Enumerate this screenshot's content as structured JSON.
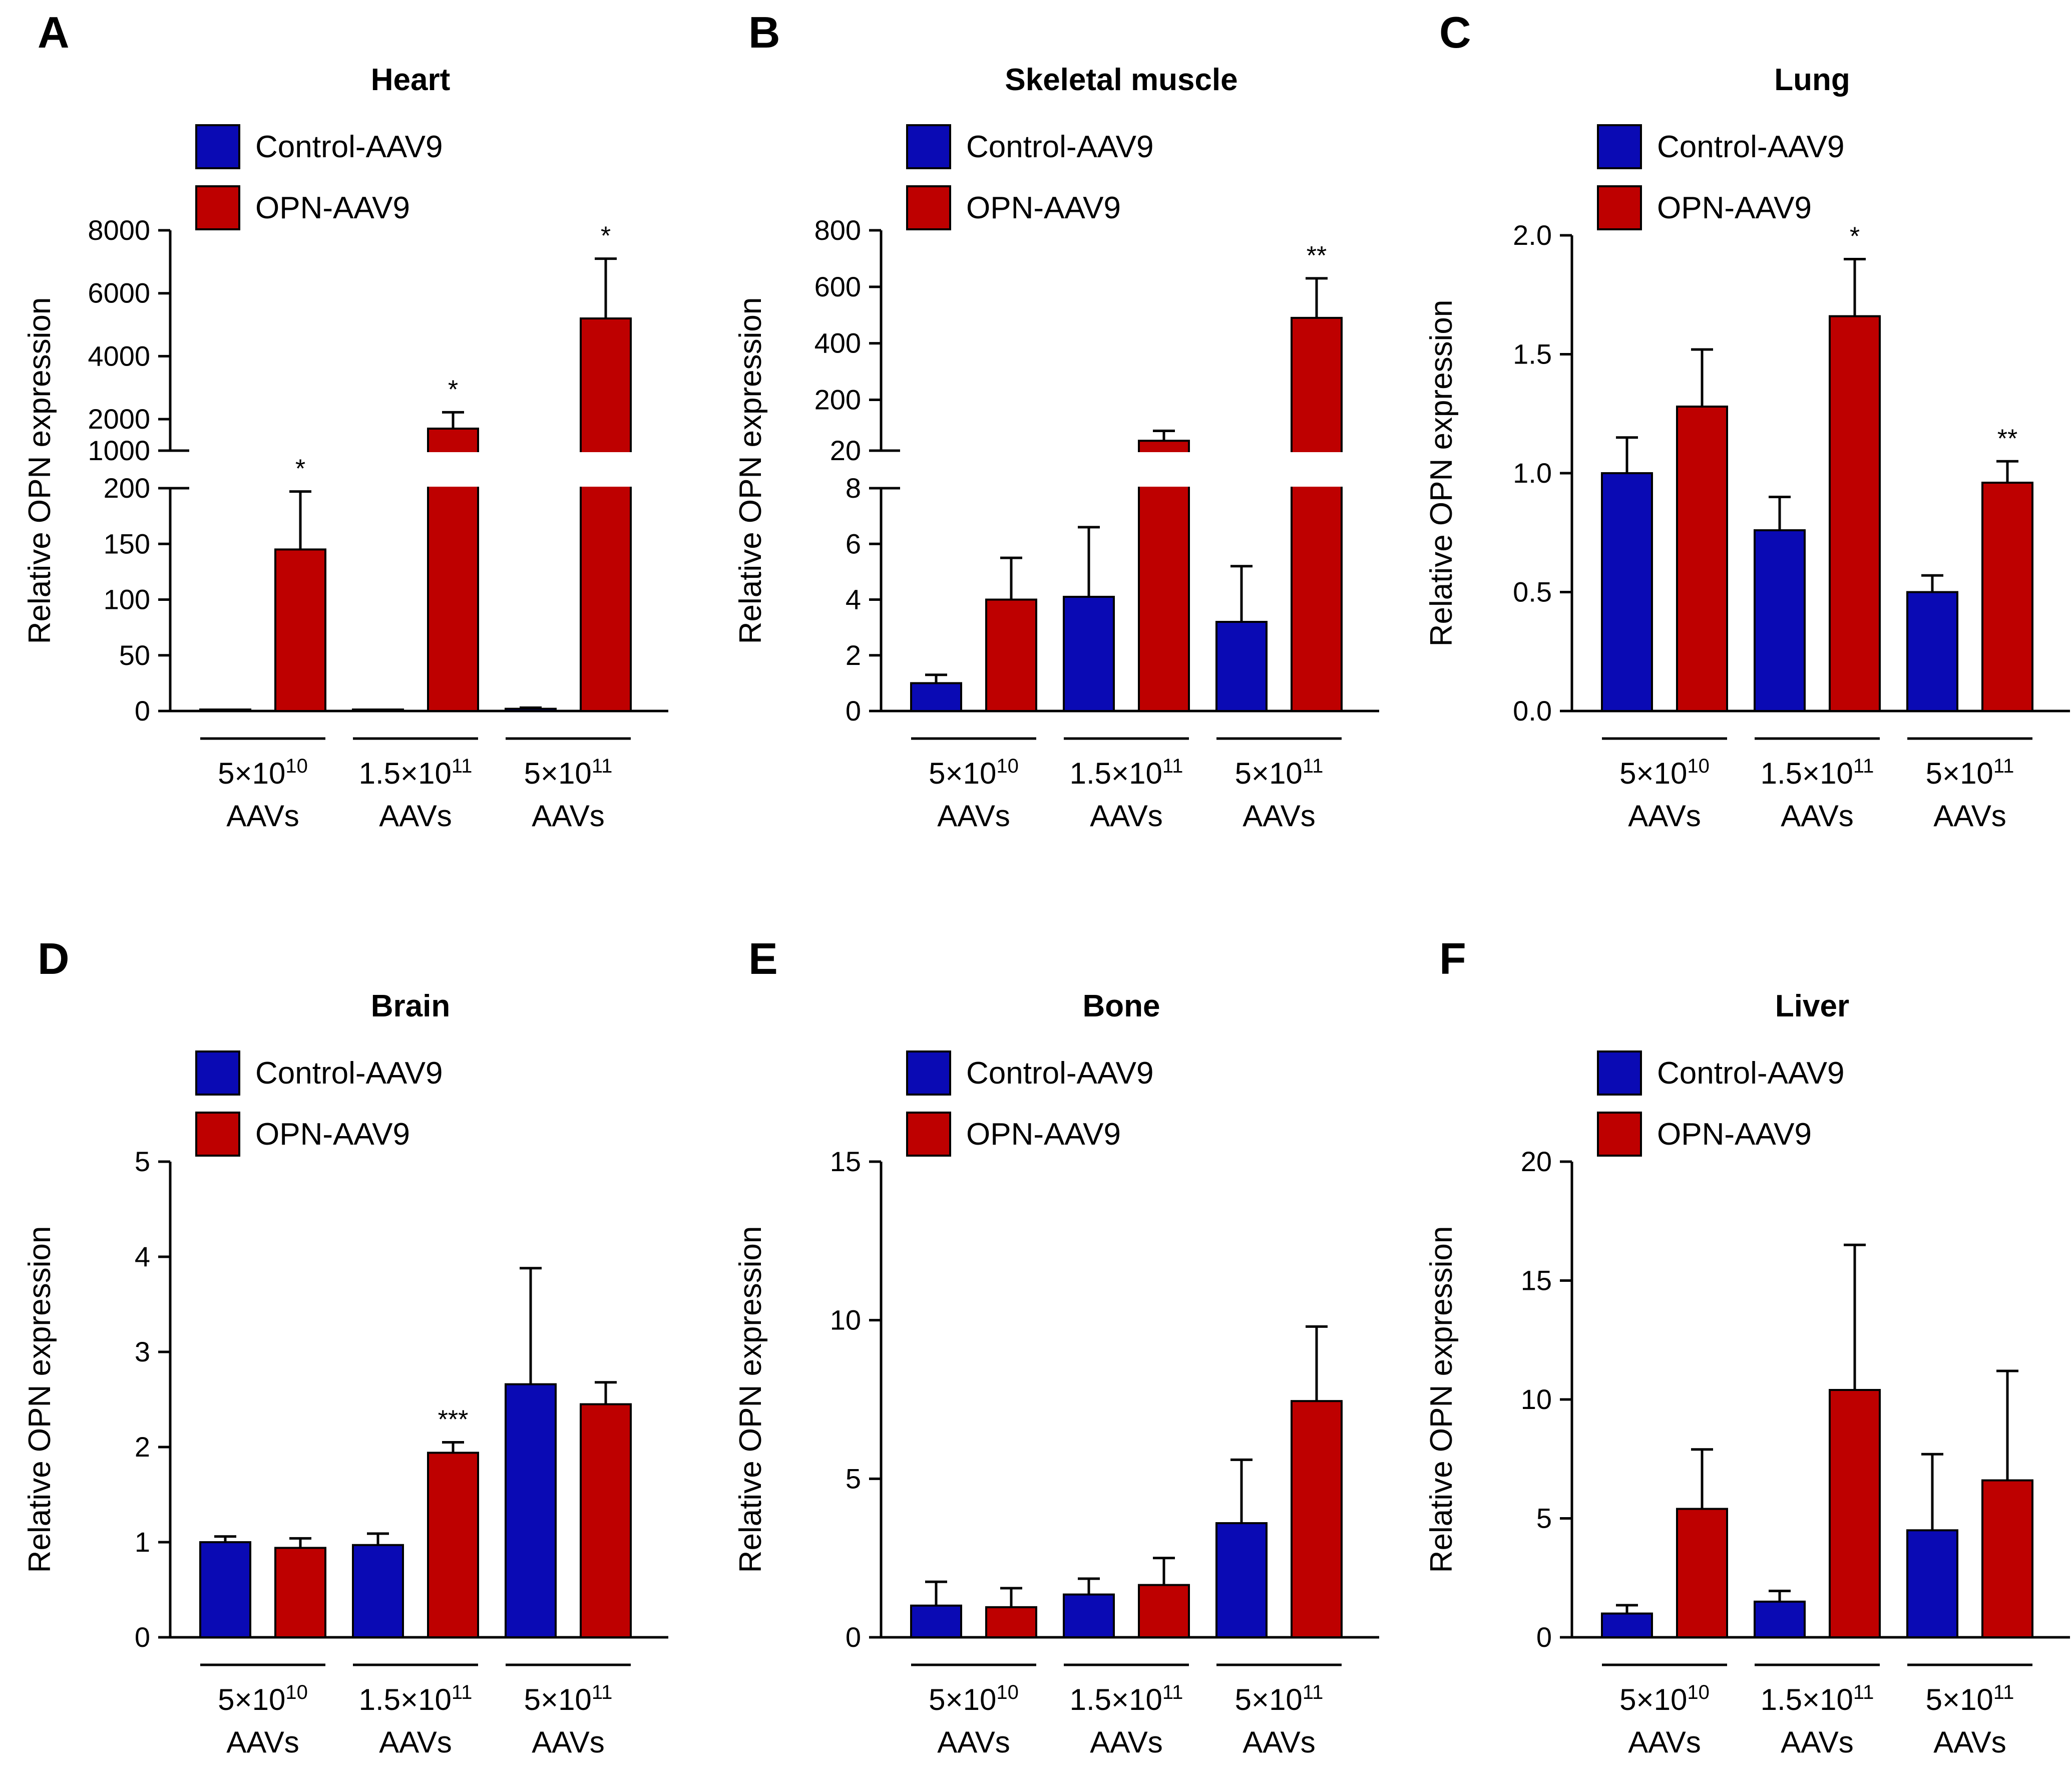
{
  "chart_data": [
    {
      "panel": "A",
      "title": "Heart",
      "type": "bar",
      "ylabel": "Relative OPN expression",
      "legend": [
        "Control-AAV9",
        "OPN-AAV9"
      ],
      "categories": [
        {
          "dose": "5×10",
          "exp": "10",
          "unit": "AAVs"
        },
        {
          "dose": "1.5×10",
          "exp": "11",
          "unit": "AAVs"
        },
        {
          "dose": "5×10",
          "exp": "11",
          "unit": "AAVs"
        }
      ],
      "series": [
        {
          "name": "Control-AAV9",
          "color": "#0A0AB4",
          "values": [
            1,
            1,
            2
          ],
          "errors": [
            0,
            0,
            1
          ]
        },
        {
          "name": "OPN-AAV9",
          "color": "#BE0000",
          "values": [
            145,
            1700,
            5200
          ],
          "errors": [
            52,
            520,
            1900
          ]
        }
      ],
      "significance": [
        "*",
        "*",
        "*"
      ],
      "broken_axis": true,
      "ylim_low": [
        0,
        200
      ],
      "ylim_high": [
        1000,
        8000
      ],
      "yticks_low": [
        0,
        50,
        100,
        150,
        200
      ],
      "yticks_high": [
        1000,
        2000,
        4000,
        6000,
        8000
      ],
      "ytick_labels_low": [
        "0",
        "50",
        "100",
        "150",
        "200"
      ],
      "ytick_labels_high": [
        "1000",
        "2000",
        "4000",
        "6000",
        "8000"
      ]
    },
    {
      "panel": "B",
      "title": "Skeletal muscle",
      "type": "bar",
      "ylabel": "Relative OPN expression",
      "legend": [
        "Control-AAV9",
        "OPN-AAV9"
      ],
      "categories": [
        {
          "dose": "5×10",
          "exp": "10",
          "unit": "AAVs"
        },
        {
          "dose": "1.5×10",
          "exp": "11",
          "unit": "AAVs"
        },
        {
          "dose": "5×10",
          "exp": "11",
          "unit": "AAVs"
        }
      ],
      "series": [
        {
          "name": "Control-AAV9",
          "color": "#0A0AB4",
          "values": [
            1,
            4.1,
            3.2
          ],
          "errors": [
            0.3,
            2.5,
            2.0
          ]
        },
        {
          "name": "OPN-AAV9",
          "color": "#BE0000",
          "values": [
            4.0,
            55,
            490
          ],
          "errors": [
            1.5,
            35,
            140
          ]
        }
      ],
      "significance": [
        "",
        "",
        "**"
      ],
      "broken_axis": true,
      "ylim_low": [
        0,
        8
      ],
      "ylim_high": [
        20,
        800
      ],
      "yticks_low": [
        0,
        2,
        4,
        6,
        8
      ],
      "yticks_high": [
        20,
        200,
        400,
        600,
        800
      ],
      "ytick_labels_low": [
        "0",
        "2",
        "4",
        "6",
        "8"
      ],
      "ytick_labels_high": [
        "20",
        "200",
        "400",
        "600",
        "800"
      ]
    },
    {
      "panel": "C",
      "title": "Lung",
      "type": "bar",
      "ylabel": "Relative OPN expression",
      "legend": [
        "Control-AAV9",
        "OPN-AAV9"
      ],
      "categories": [
        {
          "dose": "5×10",
          "exp": "10",
          "unit": "AAVs"
        },
        {
          "dose": "1.5×10",
          "exp": "11",
          "unit": "AAVs"
        },
        {
          "dose": "5×10",
          "exp": "11",
          "unit": "AAVs"
        }
      ],
      "series": [
        {
          "name": "Control-AAV9",
          "color": "#0A0AB4",
          "values": [
            1.0,
            0.76,
            0.5
          ],
          "errors": [
            0.15,
            0.14,
            0.07
          ]
        },
        {
          "name": "OPN-AAV9",
          "color": "#BE0000",
          "values": [
            1.28,
            1.66,
            0.96
          ],
          "errors": [
            0.24,
            0.24,
            0.09
          ]
        }
      ],
      "significance": [
        "",
        "*",
        "**"
      ],
      "broken_axis": false,
      "ylim": [
        0,
        2.0
      ],
      "yticks": [
        0,
        0.5,
        1.0,
        1.5,
        2.0
      ],
      "ytick_labels": [
        "0.0",
        "0.5",
        "1.0",
        "1.5",
        "2.0"
      ]
    },
    {
      "panel": "D",
      "title": "Brain",
      "type": "bar",
      "ylabel": "Relative OPN expression",
      "legend": [
        "Control-AAV9",
        "OPN-AAV9"
      ],
      "categories": [
        {
          "dose": "5×10",
          "exp": "10",
          "unit": "AAVs"
        },
        {
          "dose": "1.5×10",
          "exp": "11",
          "unit": "AAVs"
        },
        {
          "dose": "5×10",
          "exp": "11",
          "unit": "AAVs"
        }
      ],
      "series": [
        {
          "name": "Control-AAV9",
          "color": "#0A0AB4",
          "values": [
            1.0,
            0.97,
            2.66
          ],
          "errors": [
            0.06,
            0.12,
            1.22
          ]
        },
        {
          "name": "OPN-AAV9",
          "color": "#BE0000",
          "values": [
            0.94,
            1.94,
            2.45
          ],
          "errors": [
            0.1,
            0.11,
            0.23
          ]
        }
      ],
      "significance": [
        "",
        "***",
        ""
      ],
      "broken_axis": false,
      "ylim": [
        0,
        5
      ],
      "yticks": [
        0,
        1,
        2,
        3,
        4,
        5
      ],
      "ytick_labels": [
        "0",
        "1",
        "2",
        "3",
        "4",
        "5"
      ]
    },
    {
      "panel": "E",
      "title": "Bone",
      "type": "bar",
      "ylabel": "Relative OPN expression",
      "legend": [
        "Control-AAV9",
        "OPN-AAV9"
      ],
      "categories": [
        {
          "dose": "5×10",
          "exp": "10",
          "unit": "AAVs"
        },
        {
          "dose": "1.5×10",
          "exp": "11",
          "unit": "AAVs"
        },
        {
          "dose": "5×10",
          "exp": "11",
          "unit": "AAVs"
        }
      ],
      "series": [
        {
          "name": "Control-AAV9",
          "color": "#0A0AB4",
          "values": [
            1.0,
            1.35,
            3.6
          ],
          "errors": [
            0.75,
            0.5,
            2.0
          ]
        },
        {
          "name": "OPN-AAV9",
          "color": "#BE0000",
          "values": [
            0.95,
            1.65,
            7.45
          ],
          "errors": [
            0.6,
            0.85,
            2.35
          ]
        }
      ],
      "significance": [
        "",
        "",
        ""
      ],
      "broken_axis": false,
      "ylim": [
        0,
        15
      ],
      "yticks": [
        0,
        5,
        10,
        15
      ],
      "ytick_labels": [
        "0",
        "5",
        "10",
        "15"
      ]
    },
    {
      "panel": "F",
      "title": "Liver",
      "type": "bar",
      "ylabel": "Relative OPN expression",
      "legend": [
        "Control-AAV9",
        "OPN-AAV9"
      ],
      "categories": [
        {
          "dose": "5×10",
          "exp": "10",
          "unit": "AAVs"
        },
        {
          "dose": "1.5×10",
          "exp": "11",
          "unit": "AAVs"
        },
        {
          "dose": "5×10",
          "exp": "11",
          "unit": "AAVs"
        }
      ],
      "series": [
        {
          "name": "Control-AAV9",
          "color": "#0A0AB4",
          "values": [
            1.0,
            1.5,
            4.5
          ],
          "errors": [
            0.35,
            0.45,
            3.2
          ]
        },
        {
          "name": "OPN-AAV9",
          "color": "#BE0000",
          "values": [
            5.4,
            10.4,
            6.6
          ],
          "errors": [
            2.5,
            6.1,
            4.6
          ]
        }
      ],
      "significance": [
        "",
        "",
        ""
      ],
      "broken_axis": false,
      "ylim": [
        0,
        20
      ],
      "yticks": [
        0,
        5,
        10,
        15,
        20
      ],
      "ytick_labels": [
        "0",
        "5",
        "10",
        "15",
        "20"
      ]
    }
  ]
}
